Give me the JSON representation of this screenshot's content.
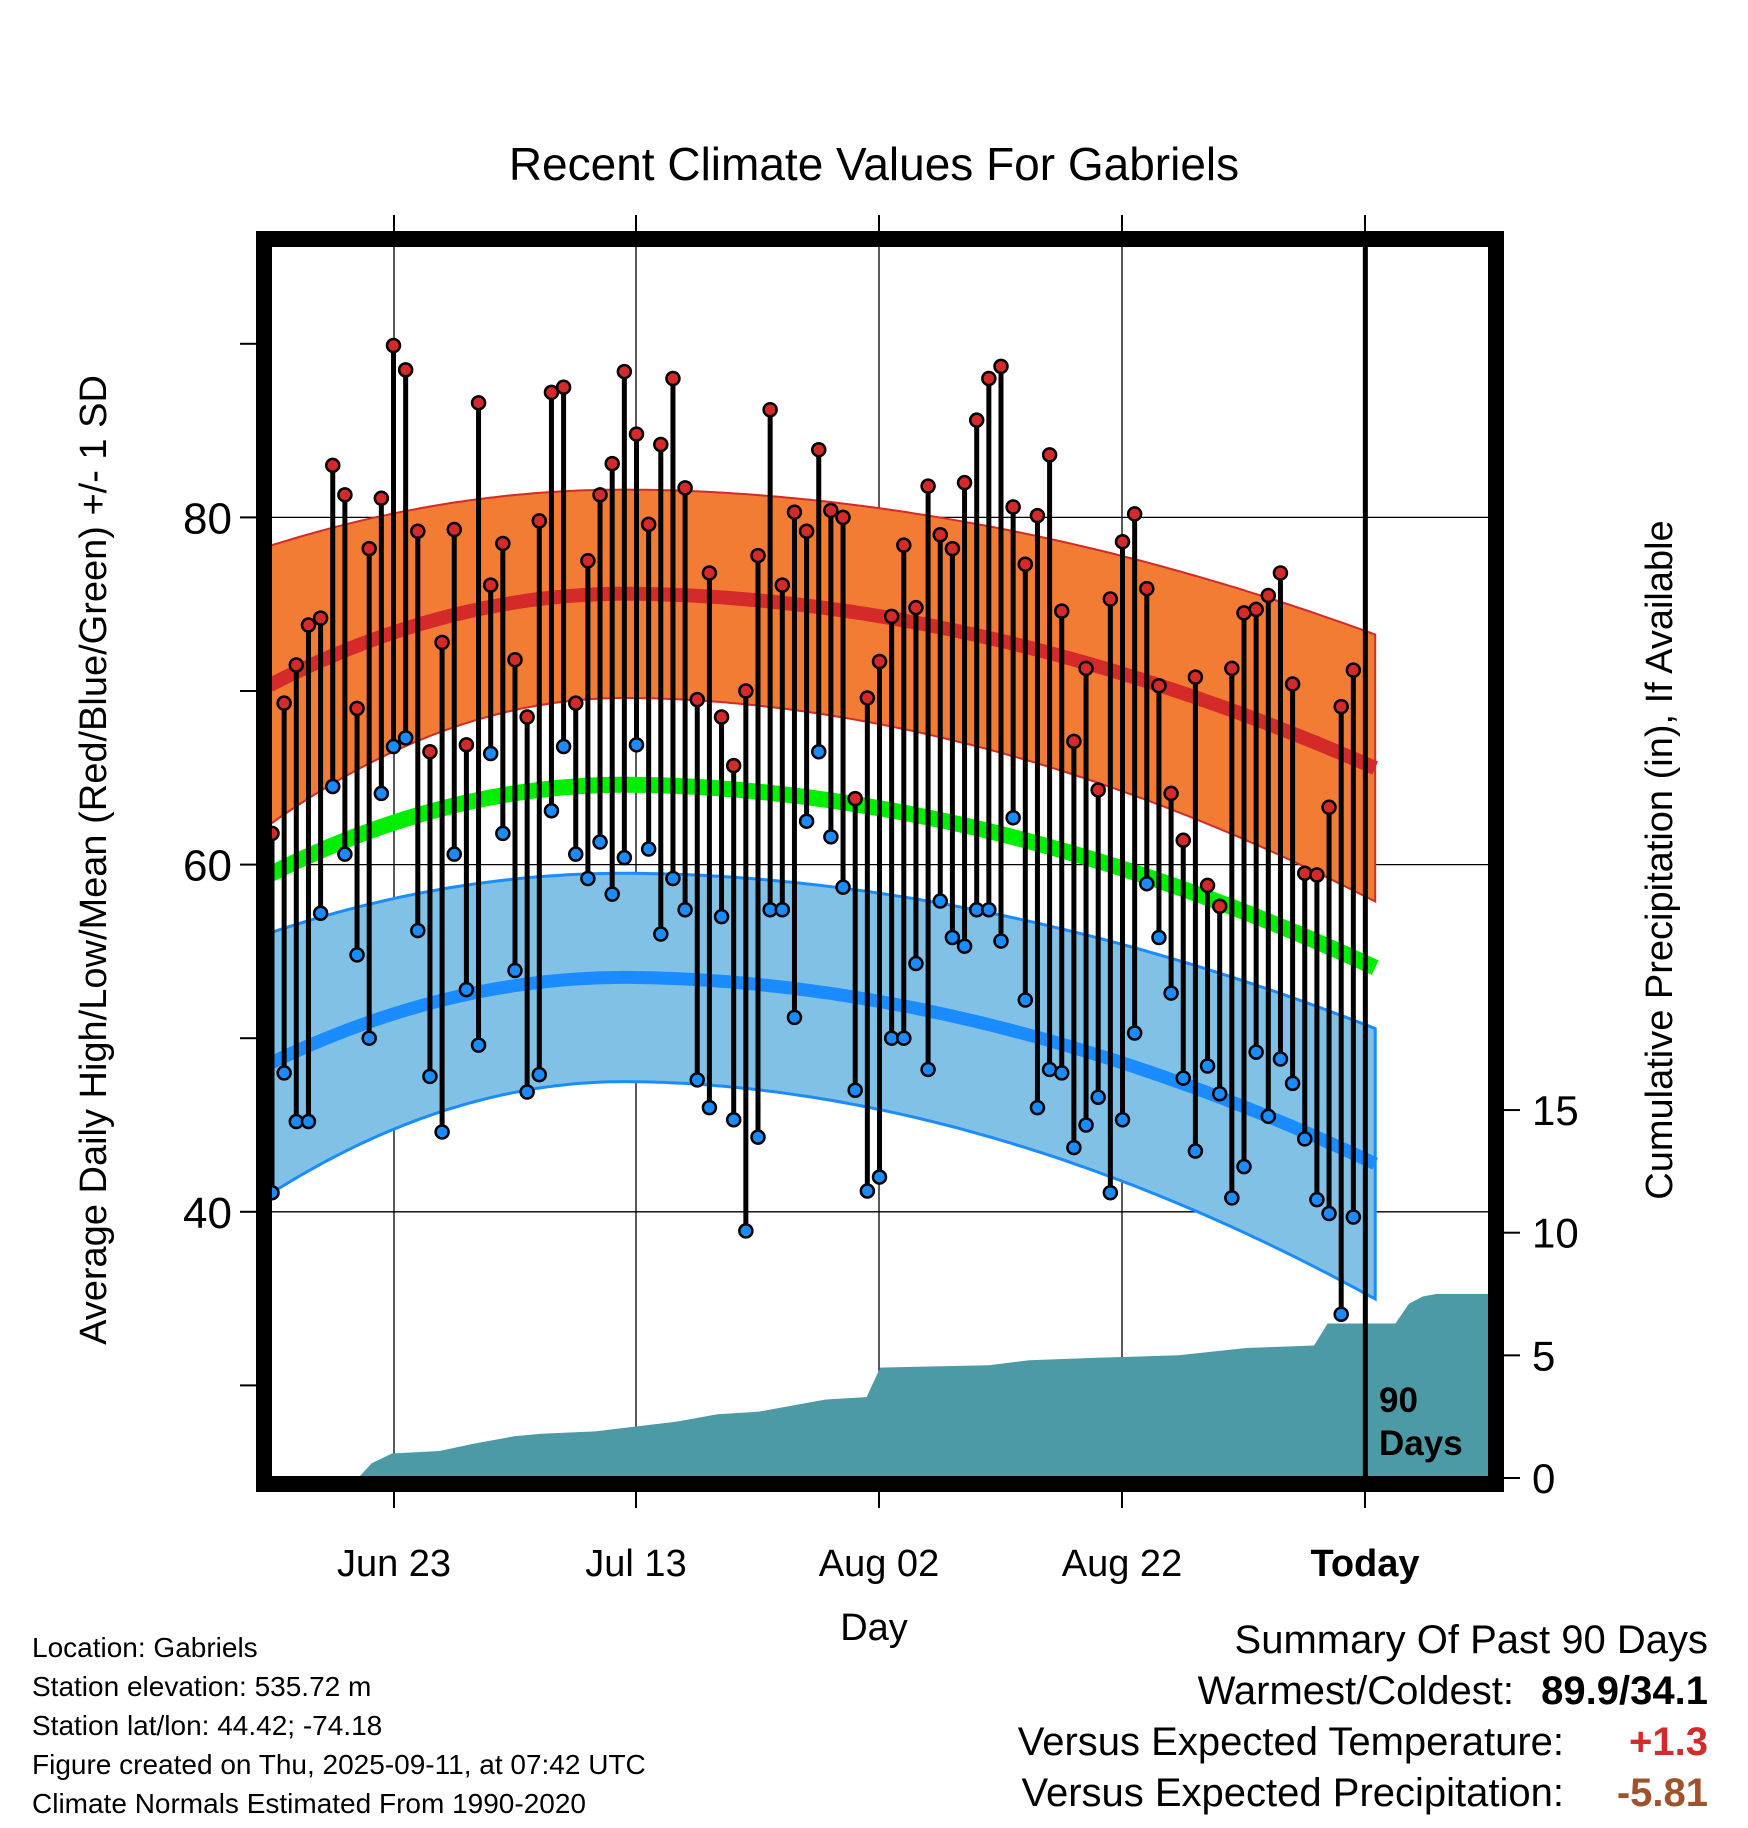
{
  "chart_data": {
    "type": "line",
    "title": "Recent Climate Values For Gabriels",
    "xlabel": "Day",
    "ylabel": "Average Daily High/Low/Mean (Red/Blue/Green) +/- 1 SD",
    "y2label": "Cumulative Precipitation (in), If Available",
    "x_ticks": [
      "Jun 23",
      "Jul 13",
      "Aug 02",
      "Aug 22",
      "Today"
    ],
    "y_ticks": [
      40,
      60,
      80
    ],
    "y2_ticks": [
      0,
      5,
      10,
      15
    ],
    "ylim": [
      25,
      96
    ],
    "y2lim": [
      0,
      36
    ],
    "today_label_line1": "90",
    "today_label_line2": "Days",
    "grid": true,
    "colors": {
      "high_band": "#f27c34",
      "high_line": "#d42a2a",
      "low_band": "#82c1e6",
      "low_line": "#1a8cff",
      "mean_line": "#00ee00",
      "precip": "#4b9aa5",
      "high_point": "#d42a2a",
      "low_point": "#1a8cff"
    },
    "normals": {
      "high_mean_start": 70.4,
      "high_mean_peak": 75.6,
      "high_mean_end": 65.5,
      "high_sd_start": 8.0,
      "high_sd_peak": 6.0,
      "high_sd_end": 7.7,
      "low_mean_start": 48.6,
      "low_mean_peak": 53.5,
      "low_mean_end": 42.7,
      "low_sd_start": 7.5,
      "low_sd_peak": 6.0,
      "low_sd_end": 7.8,
      "mean_start": 59.5,
      "mean_peak": 64.6,
      "mean_end": 54.0
    },
    "daily_high": [
      61.8,
      69.3,
      71.5,
      73.8,
      74.2,
      83.0,
      81.3,
      69.0,
      78.2,
      81.1,
      89.9,
      88.5,
      79.2,
      66.5,
      72.8,
      79.3,
      66.9,
      86.6,
      76.1,
      78.5,
      71.8,
      68.5,
      79.8,
      87.2,
      87.5,
      69.3,
      77.5,
      81.3,
      83.1,
      88.4,
      84.8,
      79.6,
      84.2,
      88.0,
      81.7,
      69.5,
      76.8,
      68.5,
      65.7,
      70.0,
      77.8,
      86.2,
      76.1,
      80.3,
      79.2,
      83.9,
      80.4,
      80.0,
      63.8,
      69.6,
      71.7,
      74.3,
      78.4,
      74.8,
      81.8,
      79.0,
      78.2,
      82.0,
      85.6,
      88.0,
      88.7,
      80.6,
      77.3,
      80.1,
      83.6,
      74.6,
      67.1,
      71.3,
      64.3,
      75.3,
      78.6,
      80.2,
      75.9,
      70.3,
      64.1,
      61.4,
      70.8,
      58.8,
      57.6,
      71.3,
      74.5,
      74.7,
      75.5,
      76.8,
      70.4,
      59.5,
      59.4,
      63.3,
      69.1,
      71.2
    ],
    "daily_low": [
      41.1,
      48.0,
      45.2,
      45.2,
      57.2,
      64.5,
      60.6,
      54.8,
      50.0,
      64.1,
      66.8,
      67.3,
      56.2,
      47.8,
      44.6,
      60.6,
      52.8,
      49.6,
      66.4,
      61.8,
      53.9,
      46.9,
      47.9,
      63.1,
      66.8,
      60.6,
      59.2,
      61.3,
      58.3,
      60.4,
      66.9,
      60.9,
      56.0,
      59.2,
      57.4,
      47.6,
      46.0,
      57.0,
      45.3,
      38.9,
      44.3,
      57.4,
      57.4,
      51.2,
      62.5,
      66.5,
      61.6,
      58.7,
      47.0,
      41.2,
      42.0,
      50.0,
      50.0,
      54.3,
      48.2,
      57.9,
      55.8,
      55.3,
      57.4,
      57.4,
      55.6,
      62.7,
      52.2,
      46.0,
      48.2,
      48.0,
      43.7,
      45.0,
      46.6,
      41.1,
      45.3,
      50.3,
      58.9,
      55.8,
      52.6,
      47.7,
      43.5,
      48.4,
      46.8,
      40.8,
      42.6,
      49.2,
      45.5,
      48.8,
      47.4,
      44.2,
      40.7,
      39.9,
      34.1,
      39.7
    ],
    "precip_steps": [
      [
        0,
        0
      ],
      [
        6.5,
        0
      ],
      [
        7.5,
        0.6
      ],
      [
        9,
        1.0
      ],
      [
        12.5,
        1.1
      ],
      [
        15,
        1.4
      ],
      [
        18,
        1.7
      ],
      [
        20,
        1.8
      ],
      [
        24,
        1.9
      ],
      [
        27,
        2.1
      ],
      [
        30,
        2.3
      ],
      [
        33,
        2.6
      ],
      [
        36,
        2.7
      ],
      [
        39,
        3.0
      ],
      [
        41,
        3.2
      ],
      [
        44,
        3.3
      ],
      [
        45,
        4.5
      ],
      [
        53,
        4.6
      ],
      [
        56,
        4.8
      ],
      [
        61,
        4.9
      ],
      [
        67,
        5.0
      ],
      [
        72,
        5.3
      ],
      [
        77,
        5.4
      ],
      [
        78,
        6.3
      ],
      [
        83,
        6.3
      ],
      [
        84,
        7.1
      ],
      [
        85,
        7.4
      ],
      [
        86,
        7.5
      ],
      [
        90,
        7.5
      ]
    ],
    "summary": {
      "heading": "Summary Of Past 90 Days",
      "warmest_coldest_label": "Warmest/Coldest:",
      "warmest_coldest_value": "89.9/34.1",
      "temp_label": "Versus Expected Temperature:",
      "temp_value": "+1.3",
      "temp_color": "#d42a2a",
      "precip_label": "Versus Expected Precipitation:",
      "precip_value": "-5.81",
      "precip_color": "#a0522d"
    }
  },
  "info": {
    "location": "Location: Gabriels",
    "elevation": "Station elevation: 535.72 m",
    "latlon": "Station lat/lon: 44.42; -74.18",
    "created": "Figure created on Thu, 2025-09-11, at 07:42 UTC",
    "normals": "Climate Normals Estimated From 1990-2020"
  }
}
